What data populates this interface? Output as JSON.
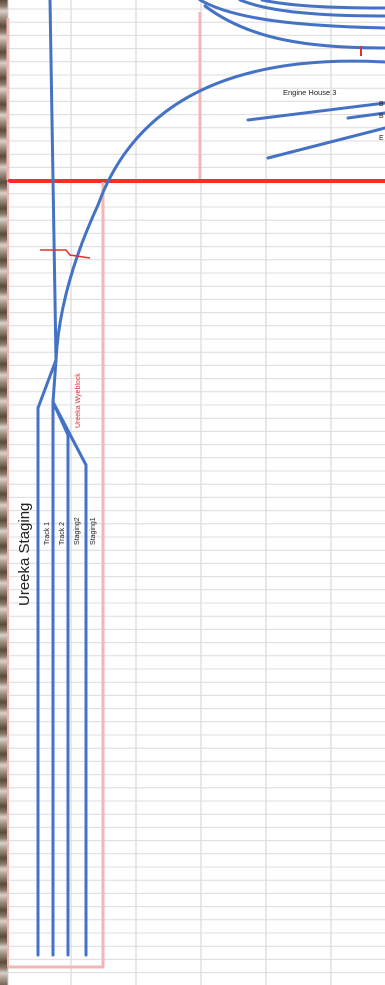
{
  "labels": {
    "staging_title": "Ureeka Staging",
    "track1": "Track 1",
    "track2": "Track 2",
    "staging2": "Staging2",
    "staging1": "Staging1",
    "wyeblock": "Ureeka Wyeblock",
    "engine_house": "Engine House 3",
    "clip_b1": "B",
    "clip_b2": "B",
    "clip_e": "E"
  },
  "colors": {
    "track": "#4472c4",
    "grid": "#d9d9d9",
    "block_red": "#ff3333",
    "block_pink": "#f4b5b5",
    "wye_label": "#e03030"
  }
}
